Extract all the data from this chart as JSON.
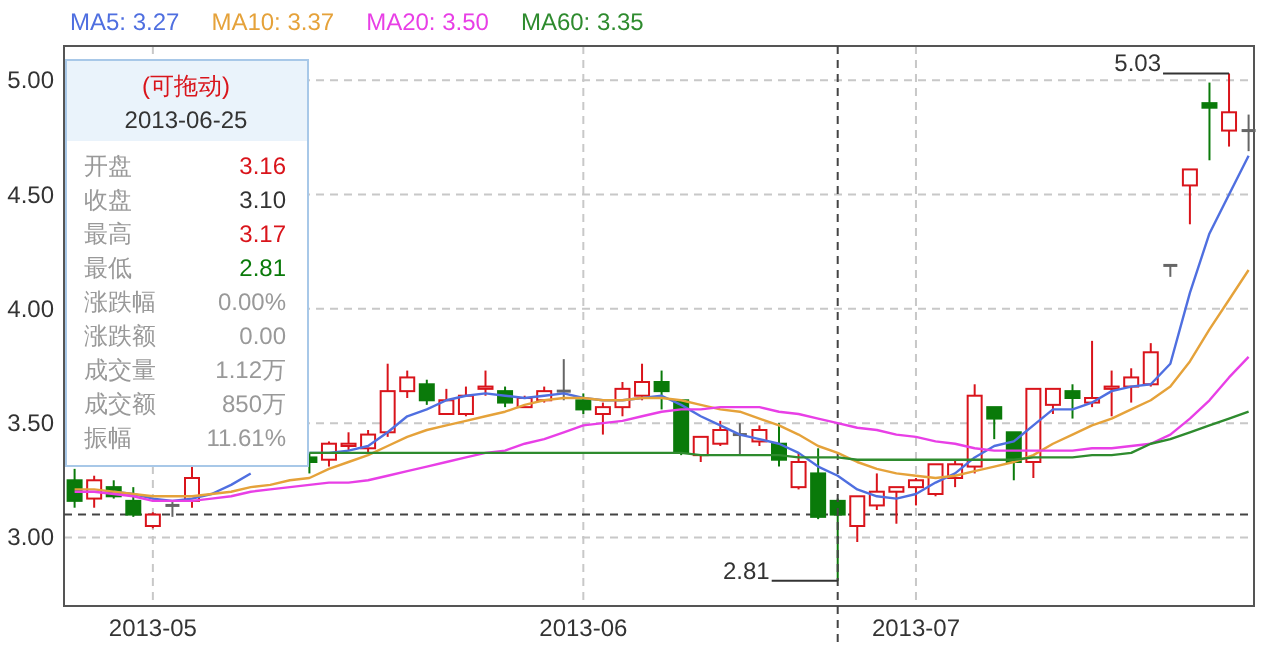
{
  "chart_data": {
    "type": "candlestick",
    "categories": [
      null,
      null,
      null,
      null,
      "2013-05",
      null,
      null,
      null,
      null,
      null,
      null,
      null,
      null,
      null,
      null,
      null,
      null,
      null,
      null,
      null,
      null,
      null,
      null,
      null,
      null,
      null,
      "2013-06",
      null,
      null,
      null,
      null,
      null,
      null,
      null,
      null,
      null,
      null,
      null,
      null,
      null,
      null,
      null,
      null,
      "2013-07",
      null,
      null,
      null,
      null,
      null,
      null,
      null,
      null,
      null,
      null,
      null,
      null,
      null,
      null,
      null,
      null,
      null
    ],
    "ohlc": [
      [
        3.25,
        3.3,
        3.13,
        3.16
      ],
      [
        3.17,
        3.27,
        3.13,
        3.25
      ],
      [
        3.22,
        3.25,
        3.17,
        3.18
      ],
      [
        3.16,
        3.22,
        3.09,
        3.1
      ],
      [
        3.05,
        3.11,
        3.04,
        3.1
      ],
      [
        3.14,
        3.16,
        3.09,
        3.14
      ],
      [
        3.16,
        3.31,
        3.13,
        3.26
      ],
      null,
      null,
      null,
      null,
      null,
      [
        3.35,
        3.37,
        3.28,
        3.33
      ],
      [
        3.34,
        3.42,
        3.31,
        3.41
      ],
      [
        3.4,
        3.46,
        3.38,
        3.41
      ],
      [
        3.39,
        3.47,
        3.37,
        3.45
      ],
      [
        3.46,
        3.76,
        3.44,
        3.64
      ],
      [
        3.64,
        3.73,
        3.61,
        3.7
      ],
      [
        3.67,
        3.69,
        3.58,
        3.6
      ],
      [
        3.54,
        3.65,
        3.54,
        3.6
      ],
      [
        3.54,
        3.66,
        3.53,
        3.62
      ],
      [
        3.65,
        3.73,
        3.62,
        3.66
      ],
      [
        3.64,
        3.66,
        3.57,
        3.59
      ],
      [
        3.57,
        3.62,
        3.57,
        3.61
      ],
      [
        3.6,
        3.66,
        3.59,
        3.64
      ],
      [
        3.64,
        3.78,
        3.6,
        3.64
      ],
      [
        3.6,
        3.63,
        3.54,
        3.56
      ],
      [
        3.54,
        3.59,
        3.45,
        3.57
      ],
      [
        3.57,
        3.68,
        3.53,
        3.65
      ],
      [
        3.62,
        3.76,
        3.6,
        3.68
      ],
      [
        3.68,
        3.73,
        3.56,
        3.64
      ],
      [
        3.6,
        3.6,
        3.36,
        3.37
      ],
      [
        3.36,
        3.44,
        3.33,
        3.44
      ],
      [
        3.41,
        3.51,
        3.4,
        3.47
      ],
      [
        3.45,
        3.5,
        3.36,
        3.45
      ],
      [
        3.42,
        3.49,
        3.4,
        3.47
      ],
      [
        3.41,
        3.5,
        3.31,
        3.34
      ],
      [
        3.22,
        3.37,
        3.21,
        3.33
      ],
      [
        3.28,
        3.39,
        3.08,
        3.09
      ],
      [
        3.16,
        3.17,
        2.81,
        3.1
      ],
      [
        3.05,
        3.18,
        2.98,
        3.18
      ],
      [
        3.14,
        3.28,
        3.12,
        3.2
      ],
      [
        3.2,
        3.22,
        3.06,
        3.22
      ],
      [
        3.22,
        3.26,
        3.14,
        3.25
      ],
      [
        3.19,
        3.32,
        3.18,
        3.32
      ],
      [
        3.26,
        3.34,
        3.22,
        3.32
      ],
      [
        3.31,
        3.67,
        3.28,
        3.62
      ],
      [
        3.57,
        3.57,
        3.43,
        3.52
      ],
      [
        3.46,
        3.46,
        3.25,
        3.33
      ],
      [
        3.33,
        3.65,
        3.26,
        3.65
      ],
      [
        3.58,
        3.65,
        3.54,
        3.65
      ],
      [
        3.64,
        3.67,
        3.52,
        3.61
      ],
      [
        3.59,
        3.86,
        3.57,
        3.61
      ],
      [
        3.65,
        3.73,
        3.53,
        3.66
      ],
      [
        3.66,
        3.74,
        3.59,
        3.7
      ],
      [
        3.67,
        3.85,
        3.66,
        3.81
      ],
      [
        4.19,
        4.19,
        4.14,
        4.19
      ],
      [
        4.54,
        4.61,
        4.37,
        4.61
      ],
      [
        4.9,
        4.99,
        4.65,
        4.88
      ],
      [
        4.78,
        5.03,
        4.71,
        4.86
      ],
      [
        4.78,
        4.85,
        4.69,
        4.78
      ]
    ],
    "series": [
      {
        "name": "MA5: 3.27",
        "type": "line",
        "color": "#4f6fe0",
        "values": [
          null,
          null,
          3.2,
          3.19,
          3.17,
          3.16,
          3.17,
          3.19,
          3.23,
          3.28,
          null,
          null,
          3.37,
          3.37,
          3.38,
          3.4,
          3.46,
          3.53,
          3.56,
          3.6,
          3.62,
          3.63,
          3.62,
          3.61,
          3.62,
          3.63,
          3.61,
          3.6,
          3.6,
          3.61,
          3.62,
          3.58,
          3.53,
          3.49,
          3.45,
          3.43,
          3.41,
          3.37,
          3.31,
          3.27,
          3.21,
          3.18,
          3.17,
          3.19,
          3.24,
          3.28,
          3.35,
          3.4,
          3.42,
          3.49,
          3.56,
          3.56,
          3.59,
          3.64,
          3.66,
          3.67,
          3.76,
          4.07,
          4.33,
          4.5,
          4.67
        ]
      },
      {
        "name": "MA10: 3.37",
        "type": "line",
        "color": "#e5a23a",
        "values": [
          3.21,
          3.21,
          3.2,
          3.19,
          3.18,
          3.18,
          3.18,
          3.19,
          3.2,
          3.22,
          3.23,
          3.25,
          3.26,
          3.3,
          3.33,
          3.36,
          3.4,
          3.44,
          3.47,
          3.49,
          3.51,
          3.53,
          3.55,
          3.58,
          3.6,
          3.61,
          3.61,
          3.6,
          3.6,
          3.61,
          3.61,
          3.6,
          3.58,
          3.56,
          3.55,
          3.52,
          3.49,
          3.45,
          3.4,
          3.37,
          3.33,
          3.3,
          3.28,
          3.27,
          3.26,
          3.27,
          3.29,
          3.31,
          3.33,
          3.36,
          3.41,
          3.45,
          3.49,
          3.52,
          3.56,
          3.6,
          3.66,
          3.77,
          3.91,
          4.04,
          4.17
        ]
      },
      {
        "name": "MA20: 3.50",
        "type": "line",
        "color": "#e83fe6",
        "values": [
          3.2,
          3.2,
          3.19,
          3.18,
          3.16,
          3.16,
          3.16,
          3.17,
          3.18,
          3.2,
          3.21,
          3.22,
          3.23,
          3.24,
          3.24,
          3.25,
          3.27,
          3.29,
          3.31,
          3.33,
          3.35,
          3.37,
          3.38,
          3.41,
          3.43,
          3.46,
          3.49,
          3.5,
          3.51,
          3.53,
          3.55,
          3.56,
          3.56,
          3.57,
          3.57,
          3.57,
          3.55,
          3.54,
          3.52,
          3.5,
          3.48,
          3.47,
          3.45,
          3.44,
          3.42,
          3.41,
          3.39,
          3.38,
          3.38,
          3.38,
          3.38,
          3.38,
          3.39,
          3.39,
          3.4,
          3.41,
          3.45,
          3.52,
          3.6,
          3.7,
          3.79
        ]
      },
      {
        "name": "MA60: 3.35",
        "type": "line",
        "color": "#2e8b2e",
        "values": [
          null,
          null,
          null,
          null,
          null,
          null,
          null,
          null,
          null,
          null,
          null,
          null,
          3.37,
          3.37,
          3.37,
          3.37,
          3.37,
          3.37,
          3.37,
          3.37,
          3.37,
          3.37,
          3.37,
          3.37,
          3.37,
          3.37,
          3.37,
          3.37,
          3.37,
          3.37,
          3.37,
          3.37,
          3.36,
          3.36,
          3.36,
          3.36,
          3.36,
          3.35,
          3.35,
          3.35,
          3.34,
          3.34,
          3.34,
          3.34,
          3.34,
          3.34,
          3.34,
          3.34,
          3.34,
          3.35,
          3.35,
          3.35,
          3.36,
          3.36,
          3.37,
          3.41,
          3.43,
          3.46,
          3.49,
          3.52,
          3.55
        ]
      }
    ],
    "ylim": [
      2.7,
      5.15
    ],
    "yticks": [
      {
        "value": 3,
        "label": "3.00"
      },
      {
        "value": 3.5,
        "label": "3.50"
      },
      {
        "value": 4,
        "label": "4.00"
      },
      {
        "value": 4.5,
        "label": "4.50"
      },
      {
        "value": 5,
        "label": "5.00"
      }
    ],
    "grid": true,
    "legend": "top",
    "ref_lines": [
      {
        "axis": "y",
        "value": 3.1,
        "line_style": "dashed"
      }
    ],
    "annotations": [
      "(可拖动)",
      "2013-06-25",
      "开盘",
      "3.16",
      "收盘",
      "3.10",
      "最高",
      "3.17",
      "最低",
      "2.81",
      "涨跌幅",
      "0.00%",
      "涨跌额",
      "0.00",
      "成交量",
      "1.12万",
      "成交额",
      "850万",
      "振幅",
      "11.61%",
      "2.81",
      "5.03"
    ]
  }
}
